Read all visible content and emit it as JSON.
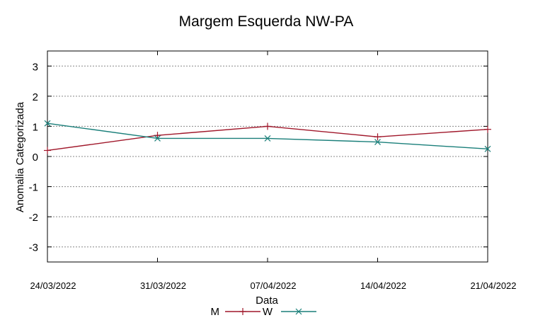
{
  "chart_data": {
    "type": "line",
    "title": "Margem Esquerda NW-PA",
    "xlabel": "Data",
    "ylabel": "Anomalia Categorizada",
    "categories": [
      "24/03/2022",
      "31/03/2022",
      "07/04/2022",
      "14/04/2022",
      "21/04/2022"
    ],
    "yticks": [
      "3",
      "2",
      "1",
      "0",
      "-1",
      "-2",
      "-3"
    ],
    "ylim": [
      -3.5,
      3.5
    ],
    "grid": true,
    "legend_position": "bottom",
    "series": [
      {
        "name": "M",
        "color": "#a0172a",
        "marker": "plus",
        "values": [
          0.2,
          0.7,
          1.0,
          0.65,
          0.9
        ]
      },
      {
        "name": "W",
        "color": "#1a7f7a",
        "marker": "x",
        "values": [
          1.1,
          0.6,
          0.6,
          0.48,
          0.25
        ]
      }
    ]
  }
}
